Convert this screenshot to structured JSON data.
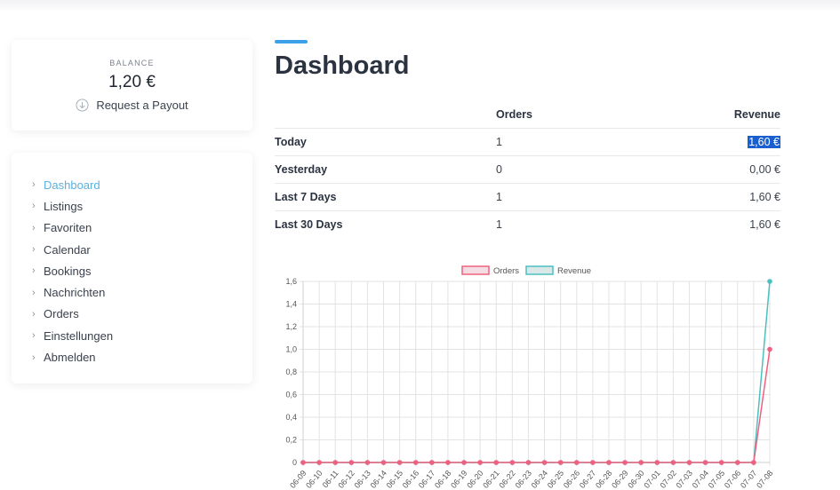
{
  "balance": {
    "label": "BALANCE",
    "value": "1,20 €",
    "payout_label": "Request a Payout"
  },
  "sidebar": {
    "items": [
      {
        "label": "Dashboard",
        "active": true
      },
      {
        "label": "Listings"
      },
      {
        "label": "Favoriten"
      },
      {
        "label": "Calendar"
      },
      {
        "label": "Bookings"
      },
      {
        "label": "Nachrichten"
      },
      {
        "label": "Orders"
      },
      {
        "label": "Einstellungen"
      },
      {
        "label": "Abmelden"
      }
    ]
  },
  "page": {
    "title": "Dashboard"
  },
  "stats": {
    "headers": {
      "orders": "Orders",
      "revenue": "Revenue"
    },
    "rows": [
      {
        "label": "Today",
        "orders": "1",
        "revenue": "1,60 €"
      },
      {
        "label": "Yesterday",
        "orders": "0",
        "revenue": "0,00 €"
      },
      {
        "label": "Last 7 Days",
        "orders": "1",
        "revenue": "1,60 €"
      },
      {
        "label": "Last 30 Days",
        "orders": "1",
        "revenue": "1,60 €"
      }
    ]
  },
  "chart_data": {
    "type": "line",
    "x": [
      "06-09",
      "06-10",
      "06-11",
      "06-12",
      "06-13",
      "06-14",
      "06-15",
      "06-16",
      "06-17",
      "06-18",
      "06-19",
      "06-20",
      "06-21",
      "06-22",
      "06-23",
      "06-24",
      "06-25",
      "06-26",
      "06-27",
      "06-28",
      "06-29",
      "06-30",
      "07-01",
      "07-02",
      "07-03",
      "07-04",
      "07-05",
      "07-06",
      "07-07",
      "07-08"
    ],
    "series": [
      {
        "name": "Orders",
        "color": "#f0607f",
        "values": [
          0,
          0,
          0,
          0,
          0,
          0,
          0,
          0,
          0,
          0,
          0,
          0,
          0,
          0,
          0,
          0,
          0,
          0,
          0,
          0,
          0,
          0,
          0,
          0,
          0,
          0,
          0,
          0,
          0,
          1
        ]
      },
      {
        "name": "Revenue",
        "color": "#4bc0c0",
        "values": [
          0,
          0,
          0,
          0,
          0,
          0,
          0,
          0,
          0,
          0,
          0,
          0,
          0,
          0,
          0,
          0,
          0,
          0,
          0,
          0,
          0,
          0,
          0,
          0,
          0,
          0,
          0,
          0,
          0,
          1.6
        ]
      }
    ],
    "yticks": [
      "0",
      "0,2",
      "0,4",
      "0,6",
      "0,8",
      "1,0",
      "1,2",
      "1,4",
      "1,6"
    ],
    "ylim": [
      0,
      1.6
    ],
    "grid": true,
    "legend": "top"
  }
}
